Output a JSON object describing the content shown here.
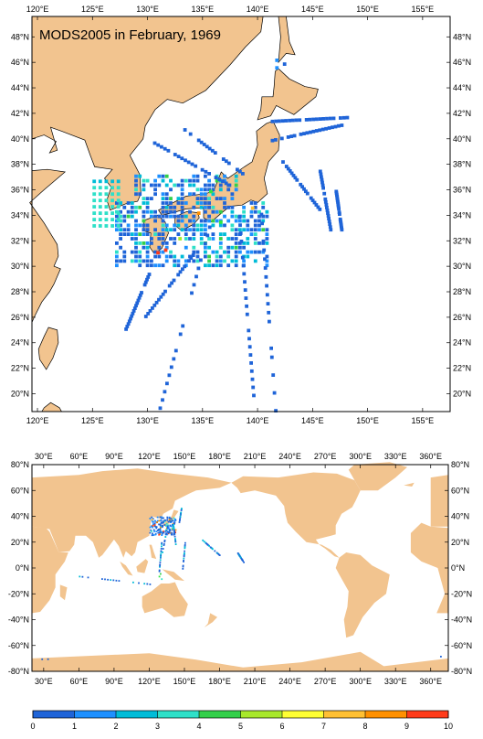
{
  "title": "MODS2005 in February, 1969",
  "colors": {
    "land": "#f2c48f",
    "ocean": "#ffffff",
    "frame": "#000000"
  },
  "top_map": {
    "lon_ticks": [
      "120°E",
      "125°E",
      "130°E",
      "135°E",
      "140°E",
      "145°E",
      "150°E",
      "155°E"
    ],
    "lat_ticks": [
      "48°N",
      "46°N",
      "44°N",
      "42°N",
      "40°N",
      "38°N",
      "36°N",
      "34°N",
      "32°N",
      "30°N",
      "28°N",
      "26°N",
      "24°N",
      "22°N",
      "20°N"
    ],
    "lon_range": [
      119.5,
      157.5
    ],
    "lat_range": [
      18.6,
      49.6
    ]
  },
  "bottom_map": {
    "lon_ticks": [
      "30°E",
      "60°E",
      "90°E",
      "120°E",
      "150°E",
      "180°E",
      "210°E",
      "240°E",
      "270°E",
      "300°E",
      "330°E",
      "360°E"
    ],
    "lat_ticks": [
      "80°N",
      "60°N",
      "40°N",
      "20°N",
      "0°N",
      "-20°N",
      "-40°N",
      "-60°N",
      "-80°N"
    ],
    "lon_range": [
      20,
      375
    ],
    "lat_range": [
      -80,
      80
    ]
  },
  "colorbar": {
    "labels": [
      "0",
      "1",
      "2",
      "3",
      "4",
      "5",
      "6",
      "7",
      "8",
      "9",
      "10"
    ],
    "colors": [
      "#1f64d8",
      "#1e90ff",
      "#00bcd8",
      "#2ee0c8",
      "#33d04a",
      "#2fe83f",
      "#a8e82c",
      "#ffff33",
      "#ffc033",
      "#ff9000",
      "#ff3b1a"
    ]
  }
}
